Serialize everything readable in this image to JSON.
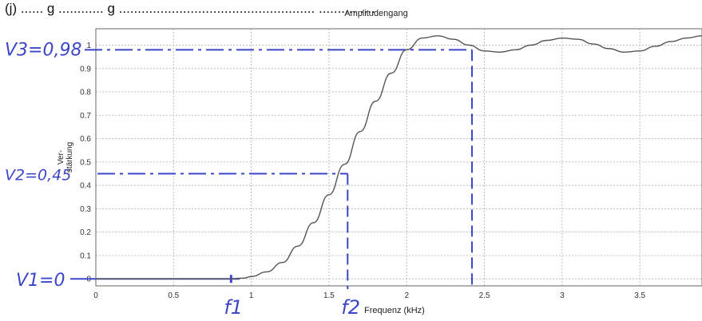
{
  "header_fragment": "(j) ...... g ............ g .................................................... .......... ....",
  "chart_data": {
    "type": "line",
    "title": "Amplitudengang",
    "xlabel": "Frequenz (kHz)",
    "ylabel": "Ver-\nstärkung",
    "xlim": [
      0,
      3.9
    ],
    "ylim": [
      -0.03,
      1.07
    ],
    "xticks": [
      0,
      0.5,
      1,
      1.5,
      2,
      2.5,
      3,
      3.5
    ],
    "xtick_labels": [
      "0",
      "0.5",
      "1",
      "1.5",
      "2",
      "2.5",
      "3",
      "3.5"
    ],
    "yticks": [
      0,
      0.1,
      0.2,
      0.3,
      0.4,
      0.5,
      0.6,
      0.7,
      0.8,
      0.9,
      1
    ],
    "ytick_labels": [
      "0",
      "0.1",
      "0.2",
      "0.3",
      "0.4",
      "0.5",
      "0.6",
      "0.7",
      "0.8",
      "0.9",
      "1"
    ],
    "grid": true,
    "series": [
      {
        "x": [
          0,
          0.5,
          0.85,
          0.95,
          1.0,
          1.1,
          1.2,
          1.3,
          1.4,
          1.5,
          1.6,
          1.7,
          1.8,
          1.9,
          2.0,
          2.1,
          2.2,
          2.3,
          2.4,
          2.5,
          2.6,
          2.7,
          2.8,
          2.9,
          3.0,
          3.1,
          3.2,
          3.3,
          3.4,
          3.5,
          3.6,
          3.7,
          3.8,
          3.9
        ],
        "y": [
          0,
          0,
          0,
          0.003,
          0.01,
          0.03,
          0.07,
          0.14,
          0.24,
          0.36,
          0.49,
          0.63,
          0.76,
          0.88,
          0.98,
          1.03,
          1.04,
          1.025,
          1.0,
          0.975,
          0.97,
          0.98,
          1.0,
          1.02,
          1.03,
          1.025,
          1.005,
          0.985,
          0.97,
          0.975,
          0.995,
          1.015,
          1.03,
          1.04
        ]
      }
    ],
    "annotations": {
      "v3_label": "V3=0,98",
      "v2_label": "V2=0,45",
      "v1_label": "V1=0",
      "f1_label": "f1",
      "f2_label": "f2",
      "v3_value": 0.98,
      "v2_value": 0.45,
      "v1_value": 0,
      "f1_value": 0.87,
      "f2_value": 1.62,
      "f3_value": 2.42,
      "annotation_color": "#3c46c8"
    },
    "line_color": "#555555",
    "grid_color": "#bdbdbd"
  }
}
